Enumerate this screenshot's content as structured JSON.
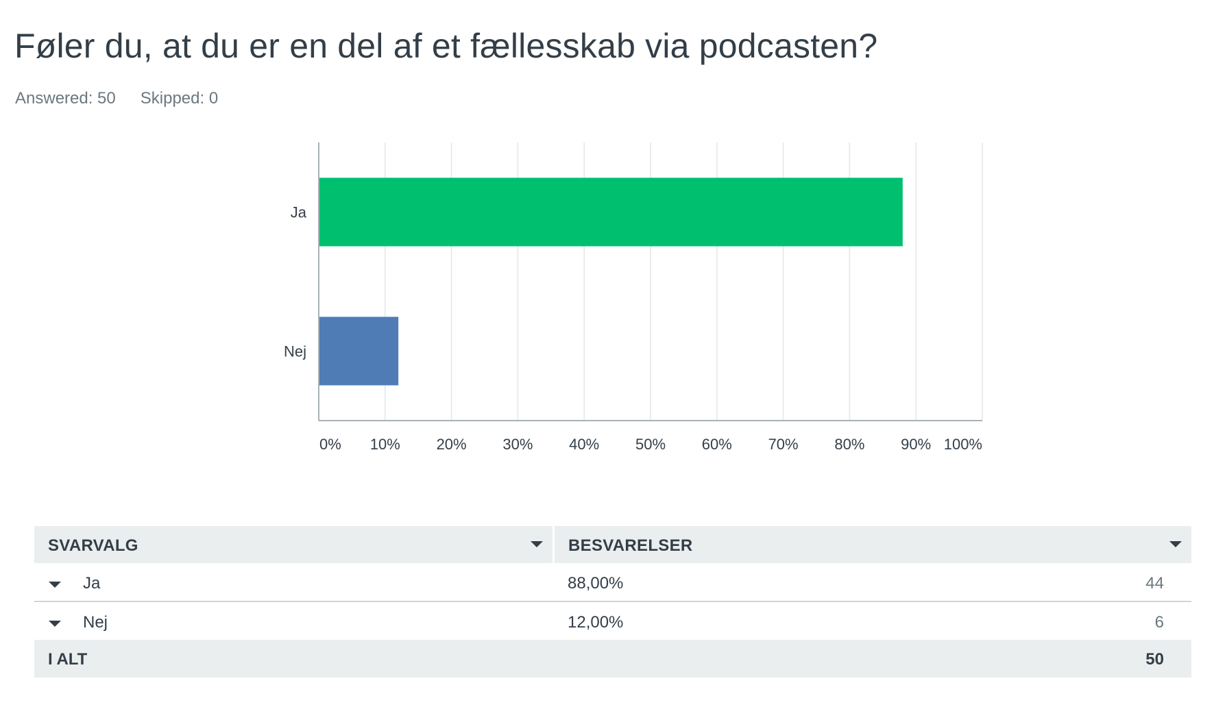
{
  "header": {
    "title": "Føler du, at du er en del af et fællesskab via podcasten?",
    "answered": "Answered: 50",
    "skipped": "Skipped: 0"
  },
  "colors": {
    "ja": "#00bf6f",
    "nej": "#507cb6",
    "grid": "#e3e7e8",
    "axis": "#a9b2b6"
  },
  "chart_data": {
    "type": "bar",
    "orientation": "horizontal",
    "categories": [
      "Ja",
      "Nej"
    ],
    "values": [
      88,
      12
    ],
    "xlim": [
      0,
      100
    ],
    "xticks": [
      "0%",
      "10%",
      "20%",
      "30%",
      "40%",
      "50%",
      "60%",
      "70%",
      "80%",
      "90%",
      "100%"
    ],
    "grid": true
  },
  "table": {
    "col1": "SVARVALG",
    "col2": "BESVARELSER",
    "rows": [
      {
        "name": "Ja",
        "pct": "88,00%",
        "count": "44"
      },
      {
        "name": "Nej",
        "pct": "12,00%",
        "count": "6"
      }
    ],
    "total_label": "I ALT",
    "total_count": "50"
  }
}
